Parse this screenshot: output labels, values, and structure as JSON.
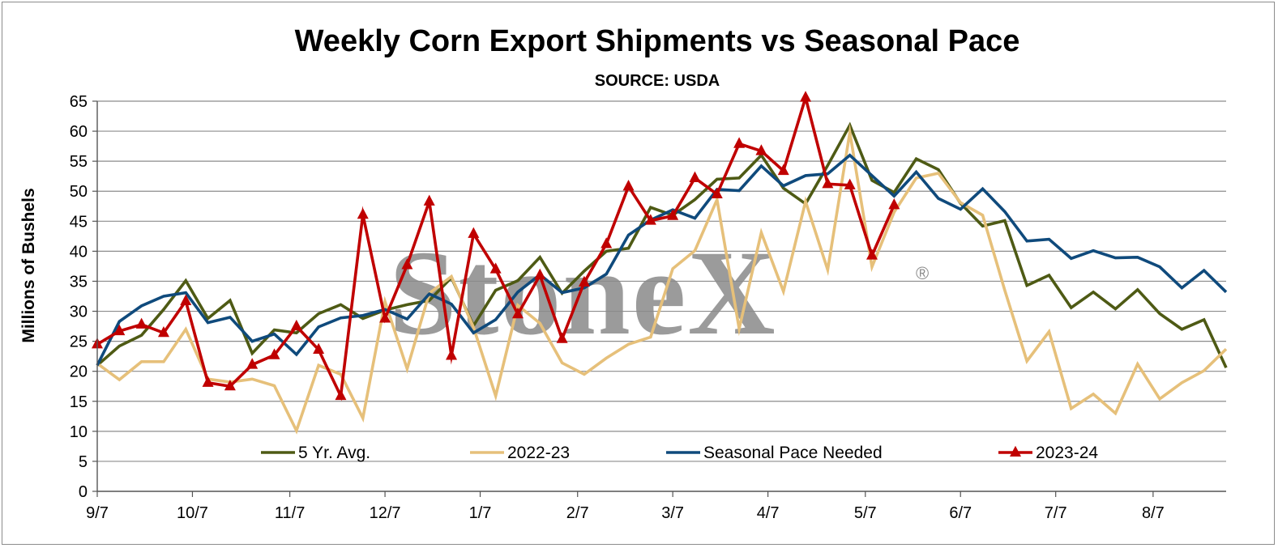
{
  "chart_data": {
    "type": "line",
    "title": "Weekly Corn Export Shipments vs Seasonal Pace",
    "subtitle": "SOURCE: USDA",
    "xlabel": "",
    "ylabel": "Millions of Bushels",
    "ylim": [
      0,
      65
    ],
    "yticks": [
      0,
      5,
      10,
      15,
      20,
      25,
      30,
      35,
      40,
      45,
      50,
      55,
      60,
      65
    ],
    "x_tick_labels": [
      "9/7",
      "10/7",
      "11/7",
      "12/7",
      "1/7",
      "2/7",
      "3/7",
      "4/7",
      "5/7",
      "6/7",
      "7/7",
      "8/7"
    ],
    "x_tick_week_index": [
      0,
      4.3,
      8.7,
      13.0,
      17.3,
      21.7,
      26.0,
      30.3,
      34.7,
      39.0,
      43.3,
      47.7
    ],
    "num_weeks": 51,
    "grid": true,
    "legend_position": "bottom-inside",
    "watermark": "StoneX",
    "watermark_mark": "®",
    "series": [
      {
        "name": "5 Yr. Avg.",
        "color": "#4e5a14",
        "marker": "none",
        "values": [
          21.0,
          24.2,
          26.0,
          30.3,
          35.1,
          28.8,
          31.8,
          23.0,
          26.9,
          26.4,
          29.6,
          31.1,
          28.8,
          30.2,
          31.1,
          31.8,
          35.6,
          27.6,
          33.5,
          35.1,
          39.0,
          33.0,
          36.7,
          40.0,
          40.5,
          47.3,
          46.0,
          48.6,
          52.0,
          52.2,
          56.0,
          50.5,
          47.9,
          54.3,
          61.0,
          51.8,
          49.8,
          55.4,
          53.6,
          48.0,
          44.2,
          45.1,
          34.3,
          36.0,
          30.6,
          33.2,
          30.4,
          33.6,
          29.6,
          27.0,
          28.6,
          20.6
        ]
      },
      {
        "name": "2022-23",
        "color": "#e6c07a",
        "marker": "none",
        "values": [
          21.3,
          18.6,
          21.6,
          21.6,
          27.0,
          18.7,
          18.2,
          18.7,
          17.6,
          10.1,
          21.0,
          19.5,
          12.2,
          31.6,
          20.4,
          33.0,
          35.8,
          27.3,
          15.9,
          31.0,
          28.0,
          21.4,
          19.5,
          22.2,
          24.5,
          25.7,
          37.1,
          40.1,
          48.6,
          27.1,
          43.1,
          33.3,
          48.3,
          36.9,
          59.8,
          37.4,
          46.5,
          52.2,
          53.0,
          48.1,
          46.0,
          33.5,
          21.7,
          26.6,
          13.8,
          16.2,
          13.0,
          21.2,
          15.4,
          18.1,
          20.1,
          23.7
        ]
      },
      {
        "name": "Seasonal Pace Needed",
        "color": "#0f4a7c",
        "marker": "none",
        "values": [
          21.0,
          28.3,
          30.9,
          32.5,
          33.1,
          28.1,
          29.0,
          25.0,
          26.2,
          22.8,
          27.4,
          28.9,
          29.3,
          30.3,
          28.7,
          32.9,
          31.2,
          26.4,
          28.6,
          33.2,
          36.1,
          33.1,
          33.9,
          36.2,
          42.7,
          45.2,
          46.9,
          45.5,
          50.3,
          50.1,
          54.2,
          50.9,
          52.6,
          52.9,
          56.0,
          52.6,
          49.2,
          53.2,
          48.8,
          47.0,
          50.4,
          46.6,
          41.7,
          42.0,
          38.8,
          40.1,
          38.9,
          39.0,
          37.4,
          33.9,
          36.8,
          33.2
        ]
      },
      {
        "name": "2023-24",
        "color": "#c00000",
        "marker": "triangle",
        "values": [
          24.5,
          26.7,
          27.8,
          26.4,
          31.7,
          18.1,
          17.5,
          21.1,
          22.7,
          27.5,
          23.6,
          15.9,
          46.1,
          28.8,
          37.7,
          48.3,
          22.6,
          42.9,
          37.0,
          29.5,
          36.0,
          25.4,
          34.8,
          41.2,
          50.8,
          45.1,
          45.9,
          52.2,
          49.5,
          57.9,
          56.7,
          53.4,
          65.6,
          51.2,
          51.0,
          39.3,
          47.7
        ]
      }
    ]
  }
}
